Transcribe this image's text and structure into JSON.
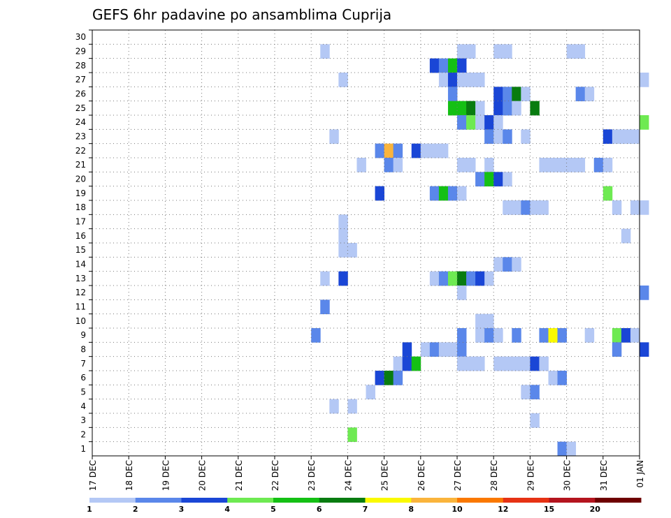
{
  "chart_data": {
    "type": "heatmap",
    "title": "GEFS 6hr padavine po ansamblima Cuprija",
    "y_ticks": [
      "1",
      "2",
      "3",
      "4",
      "5",
      "6",
      "7",
      "8",
      "9",
      "10",
      "11",
      "12",
      "13",
      "14",
      "15",
      "16",
      "17",
      "18",
      "19",
      "20",
      "21",
      "22",
      "23",
      "24",
      "25",
      "26",
      "27",
      "28",
      "29",
      "30"
    ],
    "ylim": [
      0.5,
      30.5
    ],
    "x_ticks": [
      "17 DEC",
      "18 DEC",
      "19 DEC",
      "20 DEC",
      "21 DEC",
      "22 DEC",
      "23 DEC",
      "24 DEC",
      "25 DEC",
      "26 DEC",
      "27 DEC",
      "28 DEC",
      "29 DEC",
      "30 DEC",
      "31 DEC",
      "01 JAN"
    ],
    "xlim_days": [
      0,
      15
    ],
    "grid": true,
    "colorbar": {
      "labels": [
        "1",
        "2",
        "3",
        "4",
        "5",
        "6",
        "7",
        "8",
        "10",
        "12",
        "15",
        "20"
      ],
      "colors": [
        "#b4c8f5",
        "#5a87ea",
        "#1a46d6",
        "#6eea52",
        "#14c014",
        "#087c10",
        "#fafa00",
        "#fab43c",
        "#fa7800",
        "#e63214",
        "#b4141e",
        "#6e0000"
      ]
    },
    "cells": [
      [
        29,
        6.25,
        1
      ],
      [
        29,
        10.0,
        1
      ],
      [
        29,
        10.25,
        1
      ],
      [
        29,
        11.0,
        1
      ],
      [
        29,
        11.25,
        1
      ],
      [
        29,
        13.0,
        1
      ],
      [
        29,
        13.25,
        1
      ],
      [
        28,
        9.25,
        3
      ],
      [
        28,
        9.5,
        2
      ],
      [
        28,
        9.75,
        5
      ],
      [
        28,
        10.0,
        3
      ],
      [
        27,
        6.75,
        1
      ],
      [
        27,
        9.5,
        1
      ],
      [
        27,
        9.75,
        3
      ],
      [
        27,
        10.0,
        1
      ],
      [
        27,
        10.25,
        1
      ],
      [
        27,
        10.5,
        1
      ],
      [
        27,
        15.0,
        1
      ],
      [
        26,
        9.75,
        2
      ],
      [
        26,
        11.0,
        3
      ],
      [
        26,
        11.25,
        2
      ],
      [
        26,
        11.5,
        6
      ],
      [
        26,
        11.75,
        1
      ],
      [
        26,
        13.25,
        2
      ],
      [
        26,
        13.5,
        1
      ],
      [
        25,
        9.75,
        5
      ],
      [
        25,
        10.0,
        5
      ],
      [
        25,
        10.25,
        6
      ],
      [
        25,
        10.5,
        1
      ],
      [
        25,
        11.0,
        3
      ],
      [
        25,
        11.25,
        2
      ],
      [
        25,
        11.5,
        1
      ],
      [
        25,
        12.0,
        6
      ],
      [
        24,
        10.0,
        2
      ],
      [
        24,
        10.25,
        4
      ],
      [
        24,
        10.5,
        1
      ],
      [
        24,
        10.75,
        3
      ],
      [
        24,
        11.0,
        1
      ],
      [
        24,
        15.0,
        4
      ],
      [
        23,
        6.5,
        1
      ],
      [
        23,
        10.75,
        2
      ],
      [
        23,
        11.0,
        1
      ],
      [
        23,
        11.25,
        2
      ],
      [
        23,
        11.75,
        1
      ],
      [
        23,
        14.0,
        3
      ],
      [
        23,
        14.25,
        1
      ],
      [
        23,
        14.5,
        1
      ],
      [
        23,
        14.75,
        1
      ],
      [
        22,
        7.75,
        2
      ],
      [
        22,
        8.0,
        8
      ],
      [
        22,
        8.25,
        2
      ],
      [
        22,
        8.75,
        3
      ],
      [
        22,
        9.0,
        1
      ],
      [
        22,
        9.25,
        1
      ],
      [
        22,
        9.5,
        1
      ],
      [
        21,
        7.25,
        1
      ],
      [
        21,
        8.0,
        2
      ],
      [
        21,
        8.25,
        1
      ],
      [
        21,
        10.0,
        1
      ],
      [
        21,
        10.25,
        1
      ],
      [
        21,
        10.75,
        1
      ],
      [
        21,
        12.25,
        1
      ],
      [
        21,
        12.5,
        1
      ],
      [
        21,
        12.75,
        1
      ],
      [
        21,
        13.0,
        1
      ],
      [
        21,
        13.25,
        1
      ],
      [
        21,
        13.75,
        2
      ],
      [
        21,
        14.0,
        1
      ],
      [
        20,
        10.5,
        2
      ],
      [
        20,
        10.75,
        5
      ],
      [
        20,
        11.0,
        3
      ],
      [
        20,
        11.25,
        1
      ],
      [
        19,
        7.75,
        3
      ],
      [
        19,
        9.25,
        2
      ],
      [
        19,
        9.5,
        5
      ],
      [
        19,
        9.75,
        2
      ],
      [
        19,
        10.0,
        1
      ],
      [
        19,
        14.0,
        4
      ],
      [
        18,
        11.25,
        1
      ],
      [
        18,
        11.5,
        1
      ],
      [
        18,
        11.75,
        2
      ],
      [
        18,
        12.0,
        1
      ],
      [
        18,
        12.25,
        1
      ],
      [
        18,
        14.25,
        1
      ],
      [
        18,
        14.75,
        1
      ],
      [
        18,
        15.0,
        1
      ],
      [
        17,
        6.75,
        1
      ],
      [
        16,
        6.75,
        1
      ],
      [
        16,
        14.5,
        1
      ],
      [
        15,
        6.75,
        1
      ],
      [
        15,
        7.0,
        1
      ],
      [
        14,
        11.0,
        1
      ],
      [
        14,
        11.25,
        2
      ],
      [
        14,
        11.5,
        1
      ],
      [
        13,
        6.25,
        1
      ],
      [
        13,
        6.75,
        3
      ],
      [
        13,
        9.25,
        1
      ],
      [
        13,
        9.5,
        2
      ],
      [
        13,
        9.75,
        4
      ],
      [
        13,
        10.0,
        6
      ],
      [
        13,
        10.25,
        2
      ],
      [
        13,
        10.5,
        3
      ],
      [
        13,
        10.75,
        1
      ],
      [
        12,
        10.0,
        1
      ],
      [
        12,
        15.0,
        2
      ],
      [
        11,
        6.25,
        2
      ],
      [
        10,
        10.5,
        1
      ],
      [
        10,
        10.75,
        1
      ],
      [
        9,
        6.0,
        2
      ],
      [
        9,
        10.0,
        2
      ],
      [
        9,
        10.5,
        1
      ],
      [
        9,
        10.75,
        2
      ],
      [
        9,
        11.0,
        1
      ],
      [
        9,
        11.5,
        2
      ],
      [
        9,
        12.25,
        2
      ],
      [
        9,
        12.5,
        7
      ],
      [
        9,
        12.75,
        2
      ],
      [
        9,
        13.5,
        1
      ],
      [
        9,
        14.25,
        4
      ],
      [
        9,
        14.5,
        3
      ],
      [
        9,
        14.75,
        1
      ],
      [
        8,
        8.5,
        3
      ],
      [
        8,
        9.0,
        1
      ],
      [
        8,
        9.25,
        2
      ],
      [
        8,
        9.5,
        1
      ],
      [
        8,
        9.75,
        1
      ],
      [
        8,
        10.0,
        2
      ],
      [
        8,
        14.25,
        2
      ],
      [
        8,
        15.0,
        3
      ],
      [
        7,
        8.25,
        1
      ],
      [
        7,
        8.5,
        3
      ],
      [
        7,
        8.75,
        5
      ],
      [
        7,
        10.0,
        1
      ],
      [
        7,
        10.25,
        1
      ],
      [
        7,
        10.5,
        1
      ],
      [
        7,
        11.0,
        1
      ],
      [
        7,
        11.25,
        1
      ],
      [
        7,
        11.5,
        1
      ],
      [
        7,
        11.75,
        1
      ],
      [
        7,
        12.0,
        3
      ],
      [
        7,
        12.25,
        1
      ],
      [
        6,
        7.75,
        3
      ],
      [
        6,
        8.0,
        6
      ],
      [
        6,
        8.25,
        2
      ],
      [
        6,
        12.5,
        1
      ],
      [
        6,
        12.75,
        2
      ],
      [
        5,
        7.5,
        1
      ],
      [
        5,
        11.75,
        1
      ],
      [
        5,
        12.0,
        2
      ],
      [
        4,
        6.5,
        1
      ],
      [
        4,
        7.0,
        1
      ],
      [
        3,
        12.0,
        1
      ],
      [
        2,
        7.0,
        4
      ],
      [
        1,
        12.75,
        2
      ],
      [
        1,
        13.0,
        1
      ]
    ]
  }
}
